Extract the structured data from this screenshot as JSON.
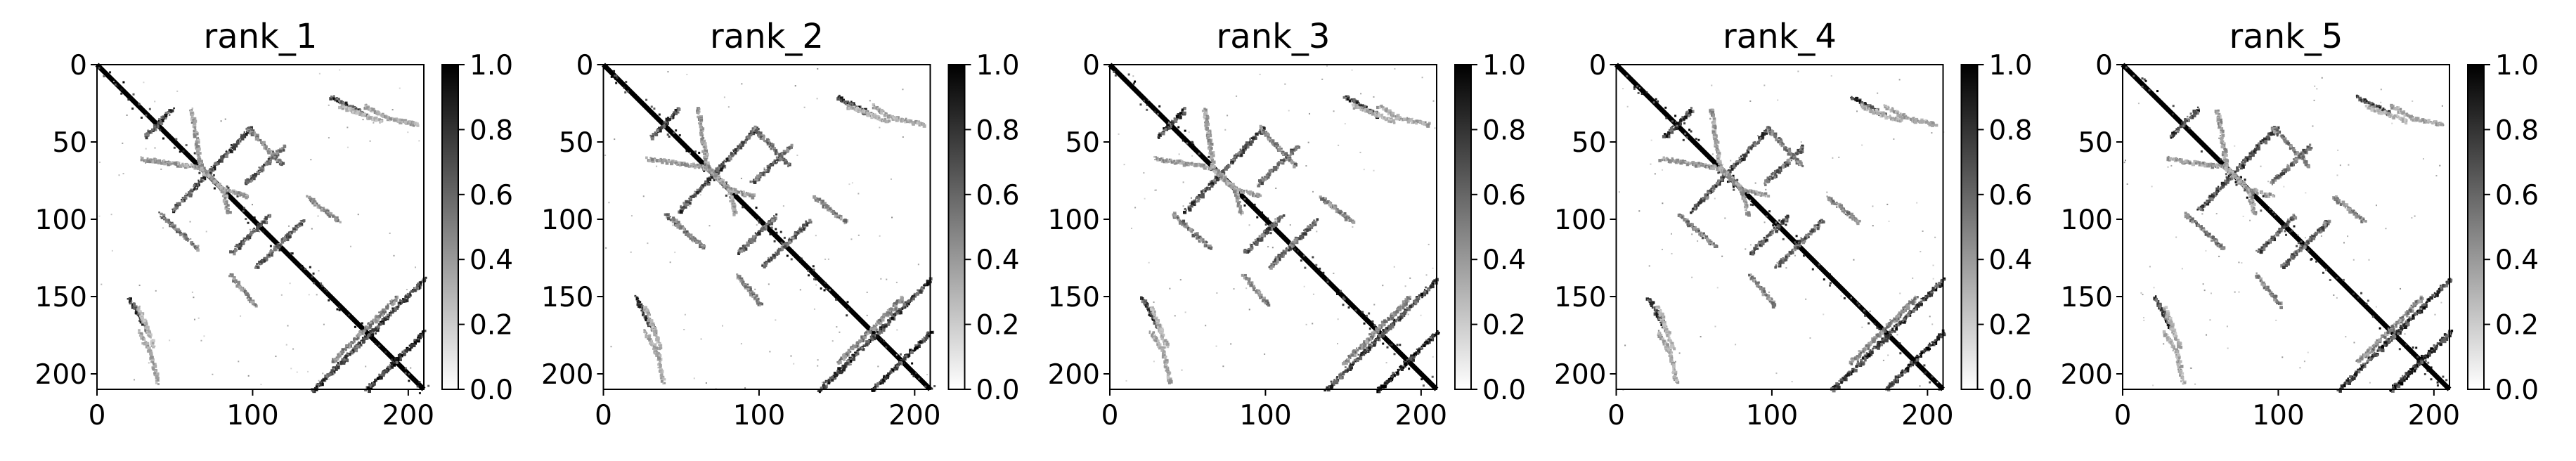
{
  "chart_data": {
    "type": "heatmap",
    "colormap": "Greys",
    "colorbar": {
      "range": [
        0,
        1
      ],
      "ticks": [
        "0.0",
        "0.2",
        "0.4",
        "0.6",
        "0.8",
        "1.0"
      ]
    },
    "matrix_size": 210,
    "x_ticks": [
      "0",
      "100",
      "200"
    ],
    "y_ticks": [
      "0",
      "50",
      "100",
      "150",
      "200"
    ],
    "features": [
      {
        "kind": "main_diagonal",
        "from": 0,
        "to": 210,
        "value": 1.0
      },
      {
        "kind": "anti_diagonal",
        "points": [
          [
            48,
            28
          ],
          [
            30,
            46
          ]
        ],
        "value": 0.85
      },
      {
        "kind": "anti_diagonal",
        "points": [
          [
            98,
            40
          ],
          [
            48,
            94
          ]
        ],
        "value": 0.8
      },
      {
        "kind": "anti_diagonal",
        "points": [
          [
            120,
            52
          ],
          [
            95,
            76
          ]
        ],
        "value": 0.7
      },
      {
        "kind": "anti_diagonal",
        "points": [
          [
            110,
            97
          ],
          [
            86,
            121
          ]
        ],
        "value": 0.75
      },
      {
        "kind": "anti_diagonal",
        "points": [
          [
            132,
            100
          ],
          [
            102,
            130
          ]
        ],
        "value": 0.7
      },
      {
        "kind": "anti_diagonal",
        "points": [
          [
            210,
            138
          ],
          [
            138,
            210
          ]
        ],
        "value": 0.85
      },
      {
        "kind": "anti_diagonal",
        "points": [
          [
            210,
            172
          ],
          [
            172,
            210
          ]
        ],
        "value": 0.95
      },
      {
        "kind": "anti_diagonal",
        "points": [
          [
            192,
            150
          ],
          [
            150,
            192
          ]
        ],
        "value": 0.55
      },
      {
        "kind": "parallel_diagonal",
        "points": [
          [
            20,
            150
          ],
          [
            32,
            172
          ]
        ],
        "value": 0.85
      },
      {
        "kind": "parallel_diagonal",
        "points": [
          [
            150,
            20
          ],
          [
            172,
            32
          ]
        ],
        "value": 0.85
      },
      {
        "kind": "parallel_diagonal",
        "points": [
          [
            40,
            96
          ],
          [
            64,
            118
          ]
        ],
        "value": 0.6
      },
      {
        "kind": "parallel_diagonal",
        "points": [
          [
            96,
            40
          ],
          [
            118,
            64
          ]
        ],
        "value": 0.6
      },
      {
        "kind": "parallel_diagonal",
        "points": [
          [
            156,
            26
          ],
          [
            182,
            36
          ]
        ],
        "value": 0.35
      },
      {
        "kind": "parallel_diagonal",
        "points": [
          [
            26,
            156
          ],
          [
            36,
            182
          ]
        ],
        "value": 0.35
      },
      {
        "kind": "parallel_diagonal",
        "points": [
          [
            135,
            85
          ],
          [
            155,
            101
          ]
        ],
        "value": 0.55
      },
      {
        "kind": "parallel_diagonal",
        "points": [
          [
            85,
            135
          ],
          [
            101,
            155
          ]
        ],
        "value": 0.55
      },
      {
        "kind": "contact_arc",
        "points": [
          [
            28,
            60
          ],
          [
            66,
            66
          ],
          [
            80,
            80
          ],
          [
            84,
            96
          ]
        ],
        "value": 0.45
      },
      {
        "kind": "contact_arc",
        "points": [
          [
            60,
            28
          ],
          [
            66,
            66
          ],
          [
            80,
            80
          ],
          [
            96,
            84
          ]
        ],
        "value": 0.45
      },
      {
        "kind": "contact_arc",
        "points": [
          [
            172,
            26
          ],
          [
            186,
            34
          ],
          [
            205,
            38
          ]
        ],
        "value": 0.4
      },
      {
        "kind": "contact_arc",
        "points": [
          [
            26,
            172
          ],
          [
            34,
            186
          ],
          [
            38,
            205
          ]
        ],
        "value": 0.4
      }
    ],
    "panels": [
      {
        "title": "rank_1"
      },
      {
        "title": "rank_2"
      },
      {
        "title": "rank_3"
      },
      {
        "title": "rank_4"
      },
      {
        "title": "rank_5"
      }
    ]
  }
}
